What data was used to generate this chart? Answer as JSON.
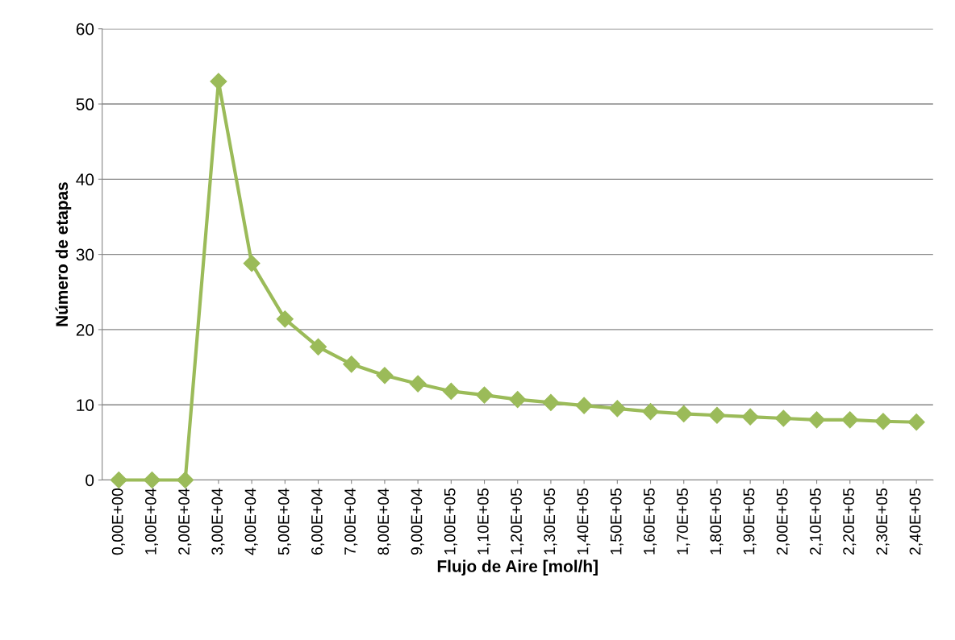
{
  "chart_data": {
    "type": "line",
    "xlabel": "Flujo de Aire [mol/h]",
    "ylabel": "Número de etapas",
    "categories": [
      "0,00E+00",
      "1,00E+04",
      "2,00E+04",
      "3,00E+04",
      "4,00E+04",
      "5,00E+04",
      "6,00E+04",
      "7,00E+04",
      "8,00E+04",
      "9,00E+04",
      "1,00E+05",
      "1,10E+05",
      "1,20E+05",
      "1,30E+05",
      "1,40E+05",
      "1,50E+05",
      "1,60E+05",
      "1,70E+05",
      "1,80E+05",
      "1,90E+05",
      "2,00E+05",
      "2,10E+05",
      "2,20E+05",
      "2,30E+05",
      "2,40E+05"
    ],
    "series": [
      {
        "color": "#9bbb59",
        "values": [
          0,
          0,
          0,
          53,
          28.8,
          21.4,
          17.7,
          15.4,
          13.9,
          12.8,
          11.8,
          11.3,
          10.7,
          10.3,
          9.9,
          9.5,
          9.1,
          8.8,
          8.6,
          8.4,
          8.2,
          8.0,
          8.0,
          7.8,
          7.7
        ]
      }
    ],
    "ylim": [
      0,
      60
    ],
    "yticks": [
      0,
      10,
      20,
      30,
      40,
      50,
      60
    ],
    "grid": "y",
    "marker": "diamond",
    "line_style": "solid",
    "legend": false
  }
}
